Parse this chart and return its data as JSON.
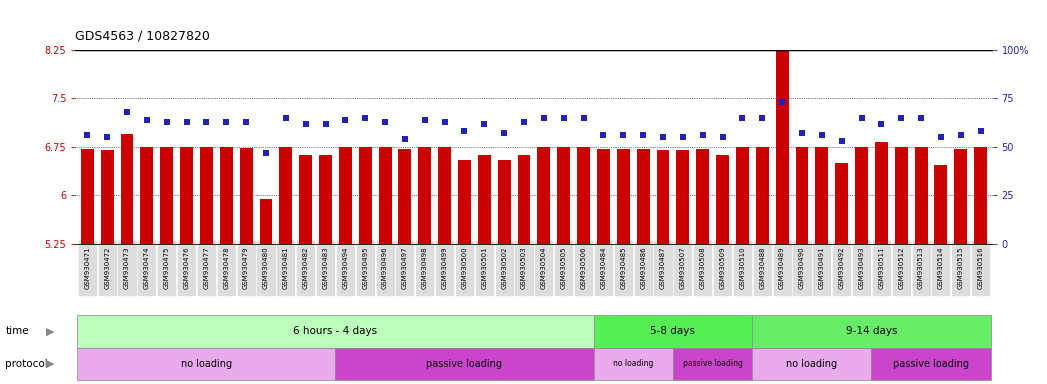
{
  "title": "GDS4563 / 10827820",
  "categories": [
    "GSM930471",
    "GSM930472",
    "GSM930473",
    "GSM930474",
    "GSM930475",
    "GSM930476",
    "GSM930477",
    "GSM930478",
    "GSM930479",
    "GSM930480",
    "GSM930481",
    "GSM930482",
    "GSM930483",
    "GSM930494",
    "GSM930495",
    "GSM930496",
    "GSM930497",
    "GSM930498",
    "GSM930499",
    "GSM930500",
    "GSM930501",
    "GSM930502",
    "GSM930503",
    "GSM930504",
    "GSM930505",
    "GSM930506",
    "GSM930484",
    "GSM930485",
    "GSM930486",
    "GSM930487",
    "GSM930507",
    "GSM930508",
    "GSM930509",
    "GSM930510",
    "GSM930488",
    "GSM930489",
    "GSM930490",
    "GSM930491",
    "GSM930492",
    "GSM930493",
    "GSM930511",
    "GSM930512",
    "GSM930513",
    "GSM930514",
    "GSM930515",
    "GSM930516"
  ],
  "bar_values": [
    6.72,
    6.7,
    6.95,
    6.75,
    6.75,
    6.75,
    6.75,
    6.75,
    6.74,
    5.95,
    6.75,
    6.63,
    6.63,
    6.75,
    6.75,
    6.75,
    6.72,
    6.75,
    6.75,
    6.55,
    6.62,
    6.55,
    6.62,
    6.75,
    6.75,
    6.75,
    6.72,
    6.72,
    6.72,
    6.7,
    6.7,
    6.72,
    6.62,
    6.75,
    6.75,
    8.8,
    6.75,
    6.75,
    6.5,
    6.75,
    6.82,
    6.75,
    6.75,
    6.47,
    6.72,
    6.75
  ],
  "dot_values_pct": [
    56,
    55,
    68,
    64,
    63,
    63,
    63,
    63,
    63,
    47,
    65,
    62,
    62,
    64,
    65,
    63,
    54,
    64,
    63,
    58,
    62,
    57,
    63,
    65,
    65,
    65,
    56,
    56,
    56,
    55,
    55,
    56,
    55,
    65,
    65,
    73,
    57,
    56,
    53,
    65,
    62,
    65,
    65,
    55,
    56,
    58
  ],
  "bar_color": "#CC0000",
  "dot_color": "#2222BB",
  "ylim_left": [
    5.25,
    8.25
  ],
  "ylim_right": [
    0,
    100
  ],
  "yticks_left": [
    5.25,
    6.0,
    6.75,
    7.5,
    8.25
  ],
  "ytick_labels_left": [
    "5.25",
    "6",
    "6.75",
    "7.5",
    "8.25"
  ],
  "yticks_right": [
    0,
    25,
    50,
    75,
    100
  ],
  "ytick_labels_right": [
    "0",
    "25",
    "50",
    "75",
    "100%"
  ],
  "hgrid_at": [
    6.0,
    6.75,
    7.5
  ],
  "time_groups": [
    {
      "label": "6 hours - 4 days",
      "start": 0,
      "end": 26,
      "color": "#BBFFBB"
    },
    {
      "label": "5-8 days",
      "start": 26,
      "end": 34,
      "color": "#55EE55"
    },
    {
      "label": "9-14 days",
      "start": 34,
      "end": 46,
      "color": "#66EE66"
    }
  ],
  "protocol_groups": [
    {
      "label": "no loading",
      "start": 0,
      "end": 13,
      "color": "#EAAAEE"
    },
    {
      "label": "passive loading",
      "start": 13,
      "end": 26,
      "color": "#CC44CC"
    },
    {
      "label": "no loading",
      "start": 26,
      "end": 30,
      "color": "#EAAAEE"
    },
    {
      "label": "passive loading",
      "start": 30,
      "end": 34,
      "color": "#CC44CC"
    },
    {
      "label": "no loading",
      "start": 34,
      "end": 40,
      "color": "#EAAAEE"
    },
    {
      "label": "passive loading",
      "start": 40,
      "end": 46,
      "color": "#CC44CC"
    }
  ],
  "xtick_bg": "#DDDDDD",
  "fig_width": 10.47,
  "fig_height": 3.84,
  "dpi": 100
}
